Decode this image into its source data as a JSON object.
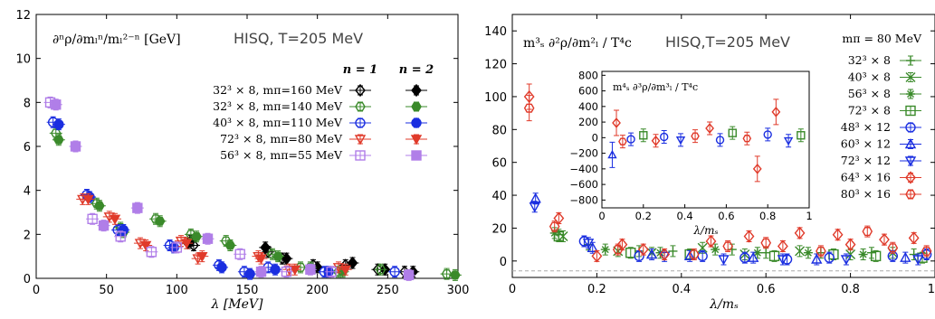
{
  "chart_data": [
    {
      "type": "scatter",
      "annotation": "HISQ, T=205 MeV",
      "ylabel_text": "∂ⁿρ/∂mₗⁿ/mₗ²⁻ⁿ [GeV]",
      "xlabel": "λ [MeV]",
      "xlim": [
        0,
        300
      ],
      "ylim": [
        0,
        12
      ],
      "xticks": [
        "0",
        "50",
        "100",
        "150",
        "200",
        "250",
        "300"
      ],
      "yticks": [
        "0",
        "2",
        "4",
        "6",
        "8",
        "10",
        "12"
      ],
      "legend_headers": [
        "n = 1",
        "n = 2"
      ],
      "legend_position": "top-right",
      "series": [
        {
          "label": "32³ × 8, mπ=160 MeV",
          "color": "#000000",
          "marker": "diamond",
          "n1": [
            [
              108,
              1.6
            ],
            [
              112,
              1.5
            ],
            [
              165,
              1.2
            ],
            [
              175,
              0.9
            ],
            [
              197,
              0.6
            ],
            [
              220,
              0.6
            ],
            [
              243,
              0.4
            ],
            [
              262,
              0.3
            ]
          ],
          "n2": [
            [
              110,
              1.7
            ],
            [
              163,
              1.4
            ],
            [
              178,
              0.9
            ],
            [
              200,
              0.5
            ],
            [
              225,
              0.7
            ],
            [
              248,
              0.4
            ],
            [
              268,
              0.3
            ]
          ]
        },
        {
          "label": "32³ × 8, mπ=140 MeV",
          "color": "#3a8a2a",
          "marker": "hexagon",
          "n1": [
            [
              14,
              6.6
            ],
            [
              43,
              3.4
            ],
            [
              60,
              2.3
            ],
            [
              85,
              2.7
            ],
            [
              110,
              2.0
            ],
            [
              135,
              1.7
            ],
            [
              168,
              1.1
            ],
            [
              188,
              0.5
            ],
            [
              215,
              0.3
            ],
            [
              245,
              0.4
            ],
            [
              292,
              0.2
            ]
          ],
          "n2": [
            [
              16,
              6.3
            ],
            [
              45,
              3.3
            ],
            [
              62,
              2.1
            ],
            [
              88,
              2.6
            ],
            [
              114,
              1.9
            ],
            [
              138,
              1.5
            ],
            [
              172,
              1.0
            ],
            [
              195,
              0.5
            ],
            [
              218,
              0.3
            ],
            [
              298,
              0.15
            ]
          ]
        },
        {
          "label": "40³ × 8, mπ=110 MeV",
          "color": "#1a2ee0",
          "marker": "circle",
          "n1": [
            [
              12,
              7.1
            ],
            [
              36,
              3.8
            ],
            [
              58,
              2.2
            ],
            [
              95,
              1.5
            ],
            [
              130,
              0.6
            ],
            [
              148,
              0.3
            ],
            [
              165,
              0.5
            ],
            [
              205,
              0.3
            ],
            [
              255,
              0.3
            ]
          ],
          "n2": [
            [
              16,
              7.0
            ],
            [
              38,
              3.7
            ],
            [
              62,
              2.2
            ],
            [
              98,
              1.4
            ],
            [
              132,
              0.5
            ],
            [
              152,
              0.2
            ],
            [
              170,
              0.4
            ],
            [
              208,
              0.3
            ]
          ]
        },
        {
          "label": "72³ × 8, mπ=80 MeV",
          "color": "#e03a2a",
          "marker": "triangle-down",
          "n1": [
            [
              33,
              3.6
            ],
            [
              52,
              2.8
            ],
            [
              74,
              1.6
            ],
            [
              103,
              1.7
            ],
            [
              115,
              0.9
            ],
            [
              158,
              1.0
            ],
            [
              180,
              0.4
            ],
            [
              215,
              0.5
            ]
          ],
          "n2": [
            [
              37,
              3.6
            ],
            [
              56,
              2.7
            ],
            [
              78,
              1.5
            ],
            [
              107,
              1.6
            ],
            [
              118,
              1.0
            ],
            [
              160,
              0.9
            ],
            [
              184,
              0.4
            ],
            [
              220,
              0.4
            ]
          ]
        },
        {
          "label": "56³ × 8, mπ=55 MeV",
          "color": "#b07ee8",
          "marker": "square",
          "n1": [
            [
              10,
              8.0
            ],
            [
              40,
              2.7
            ],
            [
              60,
              1.9
            ],
            [
              82,
              1.2
            ],
            [
              100,
              1.4
            ],
            [
              145,
              1.1
            ],
            [
              178,
              0.3
            ],
            [
              210,
              0.3
            ]
          ],
          "n2": [
            [
              14,
              7.9
            ],
            [
              28,
              6.0
            ],
            [
              48,
              2.4
            ],
            [
              72,
              3.2
            ],
            [
              122,
              1.8
            ],
            [
              160,
              0.3
            ],
            [
              195,
              0.4
            ],
            [
              265,
              0.15
            ]
          ]
        }
      ]
    },
    {
      "type": "scatter",
      "annotation": "HISQ,T=205 MeV",
      "ylabel_text": "m³ₛ ∂²ρ/∂m²ₗ / T⁴c",
      "xlabel": "λ/mₛ",
      "xlim": [
        0,
        1
      ],
      "ylim": [
        -10,
        150
      ],
      "xticks": [
        "0",
        "0.2",
        "0.4",
        "0.6",
        "0.8",
        "1"
      ],
      "yticks": [
        "0",
        "20",
        "40",
        "60",
        "80",
        "100",
        "120",
        "140"
      ],
      "legend_title": "mπ = 80 MeV",
      "legend_position": "top-right",
      "series": [
        {
          "label": "32³ × 8",
          "color": "#3a8a2a",
          "marker": "plus",
          "points": [
            [
              0.11,
              16
            ],
            [
              0.18,
              10
            ],
            [
              0.3,
              6
            ],
            [
              0.38,
              6
            ],
            [
              0.52,
              7
            ],
            [
              0.6,
              5
            ],
            [
              0.73,
              5
            ],
            [
              0.85,
              5
            ],
            [
              0.95,
              4
            ]
          ]
        },
        {
          "label": "40³ × 8",
          "color": "#3a8a2a",
          "marker": "cross",
          "points": [
            [
              0.12,
              15
            ],
            [
              0.25,
              6
            ],
            [
              0.33,
              5
            ],
            [
              0.45,
              8
            ],
            [
              0.55,
              4
            ],
            [
              0.68,
              6
            ],
            [
              0.8,
              4
            ],
            [
              0.9,
              5
            ]
          ]
        },
        {
          "label": "56³ × 8",
          "color": "#3a8a2a",
          "marker": "asterisk",
          "points": [
            [
              0.1,
              17
            ],
            [
              0.22,
              7
            ],
            [
              0.35,
              5
            ],
            [
              0.48,
              7
            ],
            [
              0.58,
              5
            ],
            [
              0.7,
              5
            ],
            [
              0.83,
              4
            ]
          ]
        },
        {
          "label": "72³ × 8",
          "color": "#3a8a2a",
          "marker": "square",
          "points": [
            [
              0.11,
              15
            ],
            [
              0.28,
              5
            ],
            [
              0.42,
              4
            ],
            [
              0.62,
              3
            ],
            [
              0.76,
              4
            ],
            [
              0.86,
              3
            ],
            [
              0.97,
              2
            ]
          ]
        },
        {
          "label": "48³ × 12",
          "color": "#1a2ee0",
          "marker": "circle",
          "points": [
            [
              0.17,
              12
            ],
            [
              0.3,
              3
            ],
            [
              0.45,
              3
            ],
            [
              0.55,
              2
            ],
            [
              0.65,
              1
            ],
            [
              0.75,
              2
            ],
            [
              0.9,
              3
            ],
            [
              0.98,
              4
            ]
          ]
        },
        {
          "label": "60³ × 12",
          "color": "#1a2ee0",
          "marker": "triangle-up",
          "points": [
            [
              0.055,
              38
            ],
            [
              0.19,
              8
            ],
            [
              0.33,
              4
            ],
            [
              0.42,
              3
            ],
            [
              0.57,
              2
            ],
            [
              0.72,
              1
            ],
            [
              0.93,
              2
            ]
          ]
        },
        {
          "label": "72³ × 12",
          "color": "#1a2ee0",
          "marker": "triangle-down",
          "points": [
            [
              0.053,
              33
            ],
            [
              0.18,
              11
            ],
            [
              0.36,
              3
            ],
            [
              0.5,
              1
            ],
            [
              0.64,
              1
            ],
            [
              0.79,
              1
            ],
            [
              0.96,
              1
            ]
          ]
        },
        {
          "label": "64³ × 16",
          "color": "#e03a2a",
          "marker": "diamond",
          "points": [
            [
              0.04,
              100
            ],
            [
              0.11,
              26
            ],
            [
              0.2,
              3
            ],
            [
              0.26,
              10
            ],
            [
              0.31,
              7
            ],
            [
              0.36,
              4
            ],
            [
              0.47,
              12
            ],
            [
              0.56,
              15
            ],
            [
              0.64,
              9
            ],
            [
              0.68,
              17
            ],
            [
              0.77,
              16
            ],
            [
              0.8,
              10
            ],
            [
              0.88,
              13
            ],
            [
              0.95,
              14
            ]
          ]
        },
        {
          "label": "80³ × 16",
          "color": "#e03a2a",
          "marker": "hexagon",
          "points": [
            [
              0.04,
              93
            ],
            [
              0.1,
              21
            ],
            [
              0.25,
              7
            ],
            [
              0.43,
              4
            ],
            [
              0.51,
              9
            ],
            [
              0.6,
              11
            ],
            [
              0.73,
              6
            ],
            [
              0.84,
              18
            ],
            [
              0.9,
              8
            ],
            [
              0.98,
              6
            ]
          ]
        }
      ],
      "inset": {
        "ylabel_text": "m⁴ₛ ∂³ρ/∂m³ₗ / T⁴c",
        "xlabel": "λ/mₛ",
        "xlim": [
          0,
          1
        ],
        "ylim": [
          -900,
          850
        ],
        "xticks": [
          "0",
          "0.2",
          "0.4",
          "0.6",
          "0.8",
          "1"
        ],
        "yticks": [
          "800",
          "600",
          "400",
          "200",
          "0",
          "−200",
          "−400",
          "−600",
          "−800"
        ],
        "points": [
          {
            "x": 0.05,
            "y": -220,
            "color": "#1a2ee0",
            "marker": "triangle-up"
          },
          {
            "x": 0.07,
            "y": 190,
            "color": "#e03a2a",
            "marker": "diamond"
          },
          {
            "x": 0.1,
            "y": -50,
            "color": "#e03a2a",
            "marker": "hexagon"
          },
          {
            "x": 0.14,
            "y": -20,
            "color": "#1a2ee0",
            "marker": "circle"
          },
          {
            "x": 0.2,
            "y": 30,
            "color": "#3a8a2a",
            "marker": "square"
          },
          {
            "x": 0.26,
            "y": -40,
            "color": "#e03a2a",
            "marker": "diamond"
          },
          {
            "x": 0.3,
            "y": 10,
            "color": "#1a2ee0",
            "marker": "circle"
          },
          {
            "x": 0.38,
            "y": -30,
            "color": "#1a2ee0",
            "marker": "triangle-down"
          },
          {
            "x": 0.45,
            "y": 20,
            "color": "#e03a2a",
            "marker": "hexagon"
          },
          {
            "x": 0.52,
            "y": 120,
            "color": "#e03a2a",
            "marker": "diamond"
          },
          {
            "x": 0.57,
            "y": -30,
            "color": "#1a2ee0",
            "marker": "circle"
          },
          {
            "x": 0.63,
            "y": 60,
            "color": "#3a8a2a",
            "marker": "square"
          },
          {
            "x": 0.7,
            "y": -10,
            "color": "#e03a2a",
            "marker": "hexagon"
          },
          {
            "x": 0.75,
            "y": -400,
            "color": "#e03a2a",
            "marker": "diamond"
          },
          {
            "x": 0.8,
            "y": 40,
            "color": "#1a2ee0",
            "marker": "circle"
          },
          {
            "x": 0.84,
            "y": 330,
            "color": "#e03a2a",
            "marker": "diamond"
          },
          {
            "x": 0.9,
            "y": -40,
            "color": "#1a2ee0",
            "marker": "triangle-down"
          },
          {
            "x": 0.96,
            "y": 30,
            "color": "#3a8a2a",
            "marker": "square"
          }
        ]
      }
    }
  ]
}
